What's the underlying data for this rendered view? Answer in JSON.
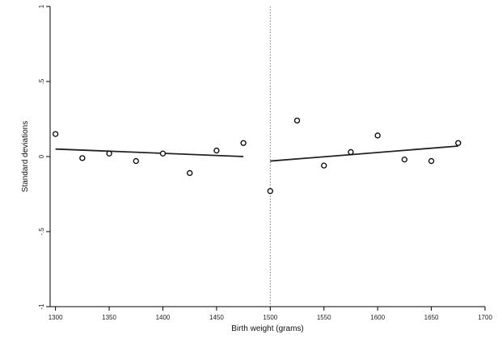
{
  "chart_data": {
    "type": "scatter",
    "title": "",
    "xlabel": "Birth weight (grams)",
    "ylabel": "Standard deviations",
    "xlim": [
      1295,
      1700
    ],
    "ylim": [
      -1,
      1
    ],
    "x_ticks": [
      1300,
      1350,
      1400,
      1450,
      1500,
      1550,
      1600,
      1650,
      1700
    ],
    "y_ticks": [
      1,
      0.5,
      0,
      -0.5,
      -1
    ],
    "y_tick_labels": [
      "1",
      ".5",
      "0",
      "-.5",
      "-1"
    ],
    "cutoff": 1500,
    "grid": false,
    "points": [
      {
        "x": 1300,
        "y": 0.15
      },
      {
        "x": 1325,
        "y": -0.01
      },
      {
        "x": 1350,
        "y": 0.02
      },
      {
        "x": 1375,
        "y": -0.03
      },
      {
        "x": 1400,
        "y": 0.02
      },
      {
        "x": 1425,
        "y": -0.11
      },
      {
        "x": 1450,
        "y": 0.04
      },
      {
        "x": 1475,
        "y": 0.09
      },
      {
        "x": 1500,
        "y": -0.23
      },
      {
        "x": 1525,
        "y": 0.24
      },
      {
        "x": 1550,
        "y": -0.06
      },
      {
        "x": 1575,
        "y": 0.03
      },
      {
        "x": 1600,
        "y": 0.14
      },
      {
        "x": 1625,
        "y": -0.02
      },
      {
        "x": 1650,
        "y": -0.03
      },
      {
        "x": 1675,
        "y": 0.09
      }
    ],
    "fit_lines": [
      {
        "x": [
          1300,
          1475
        ],
        "y": [
          0.05,
          0.0
        ]
      },
      {
        "x": [
          1500,
          1675
        ],
        "y": [
          -0.03,
          0.07
        ]
      }
    ],
    "colors": {
      "axis": "#000000",
      "marker": "#000000",
      "line": "#222222",
      "cutoff": "#777777"
    }
  }
}
